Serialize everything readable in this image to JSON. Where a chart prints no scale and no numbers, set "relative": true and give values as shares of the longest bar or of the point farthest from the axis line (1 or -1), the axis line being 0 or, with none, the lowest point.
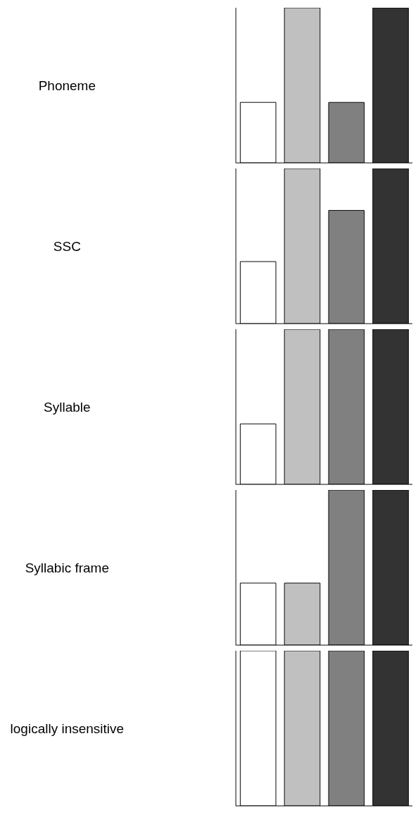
{
  "chart_data": [
    {
      "type": "bar",
      "ylabel": "Phoneme",
      "categories": [
        null,
        null,
        null,
        null
      ],
      "values": [
        0.39,
        1,
        0.39,
        1
      ],
      "colors": [
        "#ffffff",
        "#c0c0c0",
        "#808080",
        "#333333"
      ],
      "relative": true
    },
    {
      "type": "bar",
      "ylabel": "SSC",
      "categories": [
        null,
        null,
        null,
        null
      ],
      "values": [
        0.4,
        1,
        0.73,
        1
      ],
      "colors": [
        "#ffffff",
        "#c0c0c0",
        "#808080",
        "#333333"
      ],
      "relative": true
    },
    {
      "type": "bar",
      "ylabel": "Syllable",
      "categories": [
        null,
        null,
        null,
        null
      ],
      "values": [
        0.39,
        1,
        1,
        1
      ],
      "colors": [
        "#ffffff",
        "#c0c0c0",
        "#808080",
        "#333333"
      ],
      "relative": true
    },
    {
      "type": "bar",
      "ylabel": "Syllabic frame",
      "categories": [
        null,
        null,
        null,
        null
      ],
      "values": [
        0.4,
        0.4,
        1,
        1
      ],
      "colors": [
        "#ffffff",
        "#c0c0c0",
        "#808080",
        "#333333"
      ],
      "relative": true
    },
    {
      "type": "bar",
      "ylabel": "logically insensitive",
      "categories": [
        null,
        null,
        null,
        null
      ],
      "values": [
        1,
        1,
        1,
        1
      ],
      "colors": [
        "#ffffff",
        "#c0c0c0",
        "#808080",
        "#333333"
      ],
      "relative": true
    }
  ]
}
